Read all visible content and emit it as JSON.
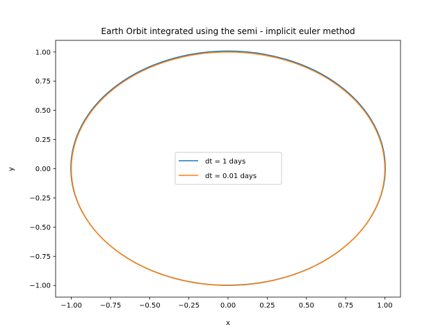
{
  "chart_data": {
    "type": "line",
    "title": "Earth Orbit integrated using the semi - implicit euler method",
    "xlabel": "x",
    "ylabel": "y",
    "xlim": [
      -1.1,
      1.1
    ],
    "ylim": [
      -1.1,
      1.1
    ],
    "xticks": [
      -1.0,
      -0.75,
      -0.5,
      -0.25,
      0.0,
      0.25,
      0.5,
      0.75,
      1.0
    ],
    "xtick_labels": [
      "−1.00",
      "−0.75",
      "−0.50",
      "−0.25",
      "0.00",
      "0.25",
      "0.50",
      "0.75",
      "1.00"
    ],
    "yticks": [
      -1.0,
      -0.75,
      -0.5,
      -0.25,
      0.0,
      0.25,
      0.5,
      0.75,
      1.0
    ],
    "ytick_labels": [
      "−1.00",
      "−0.75",
      "−0.50",
      "−0.25",
      "0.00",
      "0.25",
      "0.50",
      "0.75",
      "1.00"
    ],
    "grid": false,
    "legend_position": "center",
    "series": [
      {
        "name": "dt = 1 days",
        "color": "#1f77b4",
        "shape": "ellipse",
        "center": [
          0.0,
          0.005
        ],
        "x_radius": 1.003,
        "y_radius": 1.003
      },
      {
        "name": "dt = 0.01 days",
        "color": "#ff7f0e",
        "shape": "ellipse",
        "center": [
          0.0,
          0.0
        ],
        "x_radius": 1.0,
        "y_radius": 1.0
      }
    ]
  }
}
